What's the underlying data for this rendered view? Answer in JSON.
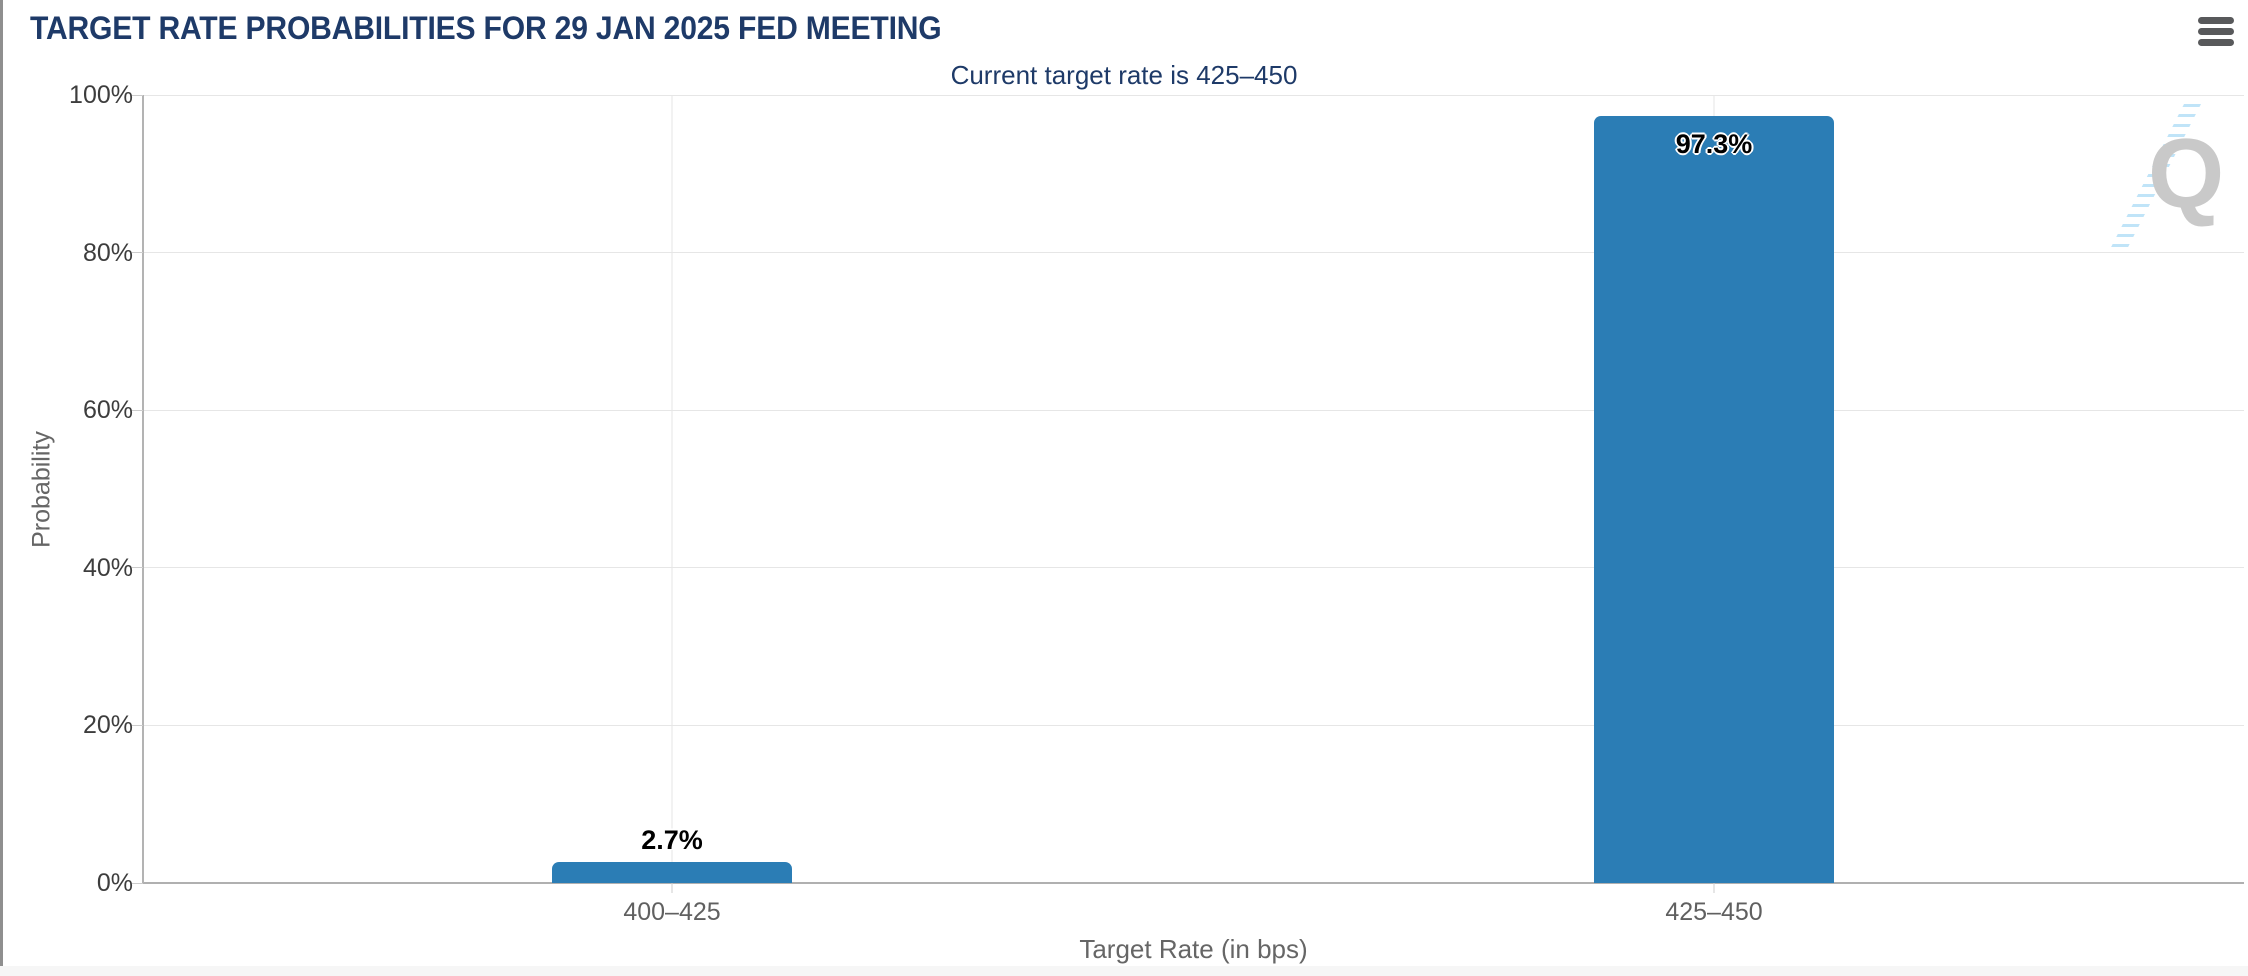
{
  "header": {
    "title": "TARGET RATE PROBABILITIES FOR 29 JAN 2025 FED MEETING"
  },
  "icons": {
    "menu": "hamburger-menu-icon",
    "watermark": "quikstrike-q-logo"
  },
  "chart_data": {
    "type": "bar",
    "title": "TARGET RATE PROBABILITIES FOR 29 JAN 2025 FED MEETING",
    "subtitle": "Current target rate is 425–450",
    "categories": [
      "400–425",
      "425–450"
    ],
    "values": [
      2.7,
      97.3
    ],
    "value_labels": [
      "2.7%",
      "97.3%"
    ],
    "xlabel": "Target Rate (in bps)",
    "ylabel": "Probability",
    "ylim": [
      0,
      100
    ],
    "ytick_labels": [
      "100%",
      "80%",
      "60%",
      "40%",
      "20%",
      "0%"
    ],
    "grid": true,
    "legend": "none",
    "bar_color": "#2b7db5",
    "watermark_letter": "Q"
  }
}
